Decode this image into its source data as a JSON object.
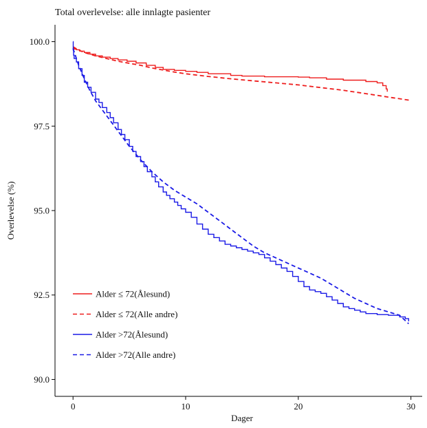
{
  "chart_data": {
    "type": "line",
    "title": "Total overlevelse: alle innlagte pasienter",
    "xlabel": "Dager",
    "ylabel": "Overlevelse (%)",
    "xlim": [
      -1.6,
      31
    ],
    "ylim": [
      89.5,
      100.5
    ],
    "xticks": [
      0,
      10,
      20,
      30
    ],
    "yticks": [
      90.0,
      92.5,
      95.0,
      97.5,
      100.0
    ],
    "xtick_labels": [
      "0",
      "10",
      "20",
      "30"
    ],
    "ytick_labels": [
      "90.0",
      "92.5",
      "95.0",
      "97.5",
      "100.0"
    ],
    "grid": false,
    "legend_position": "bottom-left",
    "series": [
      {
        "name": "Alder ≤ 72(Ålesund)",
        "color": "#ee1c1c",
        "dash": "solid",
        "step": true,
        "x": [
          0,
          0.1,
          0.3,
          0.6,
          1.0,
          1.5,
          2.0,
          2.6,
          3.3,
          4.0,
          4.8,
          5.6,
          6.5,
          7.3,
          8.0,
          9.0,
          10.0,
          11.0,
          12.0,
          14.0,
          15.0,
          17.0,
          20.0,
          21.0,
          22.5,
          24.0,
          26.0,
          27.0,
          27.5,
          27.8,
          27.9
        ],
        "y": [
          99.82,
          99.78,
          99.76,
          99.72,
          99.68,
          99.63,
          99.58,
          99.54,
          99.5,
          99.46,
          99.42,
          99.37,
          99.3,
          99.24,
          99.18,
          99.15,
          99.12,
          99.09,
          99.05,
          99.0,
          98.98,
          98.96,
          98.95,
          98.93,
          98.89,
          98.86,
          98.82,
          98.78,
          98.7,
          98.6,
          98.52
        ]
      },
      {
        "name": "Alder ≤ 72(Alle andre)",
        "color": "#ee1c1c",
        "dash": "dashed",
        "step": false,
        "x": [
          0,
          0.5,
          1.0,
          2.0,
          3.0,
          4.0,
          5.0,
          6.0,
          7.0,
          8.0,
          9.0,
          10.0,
          12.0,
          14.0,
          16.0,
          18.0,
          20.0,
          22.0,
          24.0,
          26.0,
          28.0,
          30.0
        ],
        "y": [
          99.85,
          99.75,
          99.68,
          99.58,
          99.5,
          99.42,
          99.36,
          99.3,
          99.22,
          99.16,
          99.1,
          99.05,
          98.97,
          98.9,
          98.84,
          98.78,
          98.72,
          98.64,
          98.56,
          98.46,
          98.36,
          98.26
        ]
      },
      {
        "name": "Alder >72(Ålesund)",
        "color": "#1a1ae6",
        "dash": "solid",
        "step": true,
        "x": [
          0,
          0.02,
          0.05,
          0.1,
          0.3,
          0.5,
          0.8,
          1.0,
          1.3,
          1.6,
          2.0,
          2.3,
          2.6,
          3.0,
          3.3,
          3.6,
          4.0,
          4.3,
          4.6,
          5.0,
          5.3,
          5.6,
          6.0,
          6.3,
          6.6,
          7.0,
          7.3,
          7.6,
          8.0,
          8.3,
          8.6,
          9.0,
          9.3,
          9.6,
          10.0,
          10.5,
          11.0,
          11.5,
          12.0,
          12.5,
          13.0,
          13.5,
          14.0,
          14.5,
          15.0,
          15.5,
          16.0,
          16.5,
          17.0,
          17.5,
          18.0,
          18.5,
          19.0,
          19.5,
          20.0,
          20.5,
          21.0,
          21.5,
          22.0,
          22.5,
          23.0,
          23.5,
          24.0,
          24.5,
          25.0,
          25.5,
          26.0,
          27.0,
          28.0,
          29.0,
          29.5,
          29.8
        ],
        "y": [
          100.0,
          99.75,
          99.6,
          99.5,
          99.4,
          99.2,
          99.0,
          98.8,
          98.65,
          98.5,
          98.3,
          98.2,
          98.05,
          97.9,
          97.75,
          97.6,
          97.4,
          97.25,
          97.1,
          96.9,
          96.75,
          96.6,
          96.45,
          96.3,
          96.15,
          96.0,
          95.85,
          95.7,
          95.55,
          95.45,
          95.35,
          95.25,
          95.15,
          95.05,
          94.95,
          94.8,
          94.6,
          94.45,
          94.3,
          94.2,
          94.1,
          94.0,
          93.95,
          93.9,
          93.85,
          93.8,
          93.75,
          93.7,
          93.6,
          93.5,
          93.4,
          93.3,
          93.2,
          93.05,
          92.9,
          92.75,
          92.65,
          92.6,
          92.55,
          92.45,
          92.35,
          92.25,
          92.15,
          92.1,
          92.05,
          92.0,
          91.95,
          91.92,
          91.9,
          91.85,
          91.8,
          91.72
        ]
      },
      {
        "name": "Alder >72(Alle andre)",
        "color": "#1a1ae6",
        "dash": "dashed",
        "step": false,
        "x": [
          0,
          0.2,
          0.5,
          1.0,
          1.5,
          2.0,
          3.0,
          4.0,
          5.0,
          6.0,
          7.0,
          8.0,
          9.0,
          10.0,
          11.0,
          12.0,
          13.0,
          14.0,
          15.0,
          16.0,
          17.0,
          18.0,
          19.0,
          20.0,
          21.0,
          22.0,
          23.0,
          24.0,
          25.0,
          26.0,
          27.0,
          28.0,
          29.0,
          29.8
        ],
        "y": [
          99.8,
          99.6,
          99.3,
          98.9,
          98.55,
          98.25,
          97.8,
          97.35,
          96.9,
          96.5,
          96.15,
          95.85,
          95.6,
          95.4,
          95.2,
          94.95,
          94.7,
          94.45,
          94.2,
          93.95,
          93.75,
          93.6,
          93.45,
          93.3,
          93.15,
          93.0,
          92.8,
          92.6,
          92.4,
          92.25,
          92.1,
          92.0,
          91.9,
          91.65
        ]
      }
    ]
  }
}
